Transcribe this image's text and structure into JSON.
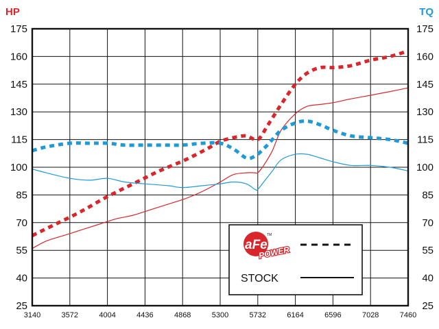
{
  "chart_data": {
    "type": "line",
    "left_axis_label": "HP",
    "right_axis_label": "TQ",
    "xlim": [
      3140,
      7460
    ],
    "ylim": [
      25,
      175
    ],
    "x_ticks": [
      "3140",
      "3572",
      "4004",
      "4436",
      "4868",
      "5300",
      "5732",
      "6164",
      "6596",
      "7028",
      "7460"
    ],
    "y_ticks": [
      "175",
      "160",
      "145",
      "130",
      "115",
      "100",
      "85",
      "70",
      "55",
      "40",
      "25"
    ],
    "grid": true,
    "legend_placement": "bottom-right",
    "colors": {
      "hp": "#d9262b",
      "tq": "#1f9ad6",
      "hp_axis_label": "#d9262b",
      "tq_axis_label": "#1f9ad6"
    },
    "legend": {
      "logo_text": "aFe",
      "logo_sub": "POWER",
      "logo_tm": "TM",
      "stock_label": "STOCK"
    },
    "series": [
      {
        "group": "aFe",
        "measure": "HP",
        "style": "dashed",
        "x": [
          3140,
          3400,
          3700,
          4000,
          4300,
          4600,
          4900,
          5150,
          5300,
          5450,
          5600,
          5732,
          5850,
          6000,
          6164,
          6300,
          6450,
          6600,
          6800,
          7028,
          7250,
          7460
        ],
        "y": [
          63,
          69,
          76,
          84,
          91,
          98,
          104,
          110,
          114,
          116,
          117,
          115,
          123,
          134,
          145,
          151,
          154,
          154,
          155,
          158,
          160,
          163
        ]
      },
      {
        "group": "stock",
        "measure": "HP",
        "style": "solid",
        "x": [
          3140,
          3300,
          3500,
          3700,
          3900,
          4100,
          4300,
          4500,
          4700,
          4900,
          5100,
          5300,
          5450,
          5600,
          5700,
          5732,
          5800,
          5900,
          6000,
          6164,
          6300,
          6450,
          6600,
          6800,
          7028,
          7250,
          7460
        ],
        "y": [
          56,
          60,
          63,
          66,
          69,
          72,
          74,
          77,
          80,
          83,
          87,
          92,
          96,
          97,
          97,
          97,
          101,
          109,
          120,
          129,
          133,
          134,
          135,
          137,
          139,
          141,
          143
        ]
      },
      {
        "group": "aFe",
        "measure": "TQ",
        "style": "dashed",
        "x": [
          3140,
          3300,
          3572,
          3800,
          4004,
          4200,
          4436,
          4700,
          4868,
          5100,
          5300,
          5450,
          5600,
          5700,
          5800,
          5900,
          6000,
          6164,
          6300,
          6450,
          6596,
          6800,
          7028,
          7250,
          7460
        ],
        "y": [
          109,
          111,
          113,
          113,
          113,
          112,
          112,
          112,
          112,
          113,
          113,
          110,
          105,
          106,
          110,
          115,
          120,
          124,
          125,
          123,
          120,
          117,
          116,
          115,
          113
        ]
      },
      {
        "group": "stock",
        "measure": "TQ",
        "style": "solid",
        "x": [
          3140,
          3300,
          3572,
          3800,
          4004,
          4200,
          4436,
          4700,
          4868,
          5100,
          5300,
          5450,
          5600,
          5700,
          5732,
          5800,
          5900,
          6000,
          6164,
          6300,
          6450,
          6596,
          6800,
          7028,
          7250,
          7460
        ],
        "y": [
          99,
          97,
          94,
          93,
          94,
          92,
          91,
          90,
          89,
          90,
          91,
          92,
          91,
          88,
          88,
          92,
          98,
          104,
          107,
          107,
          105,
          103,
          101,
          101,
          100,
          98
        ]
      }
    ]
  }
}
